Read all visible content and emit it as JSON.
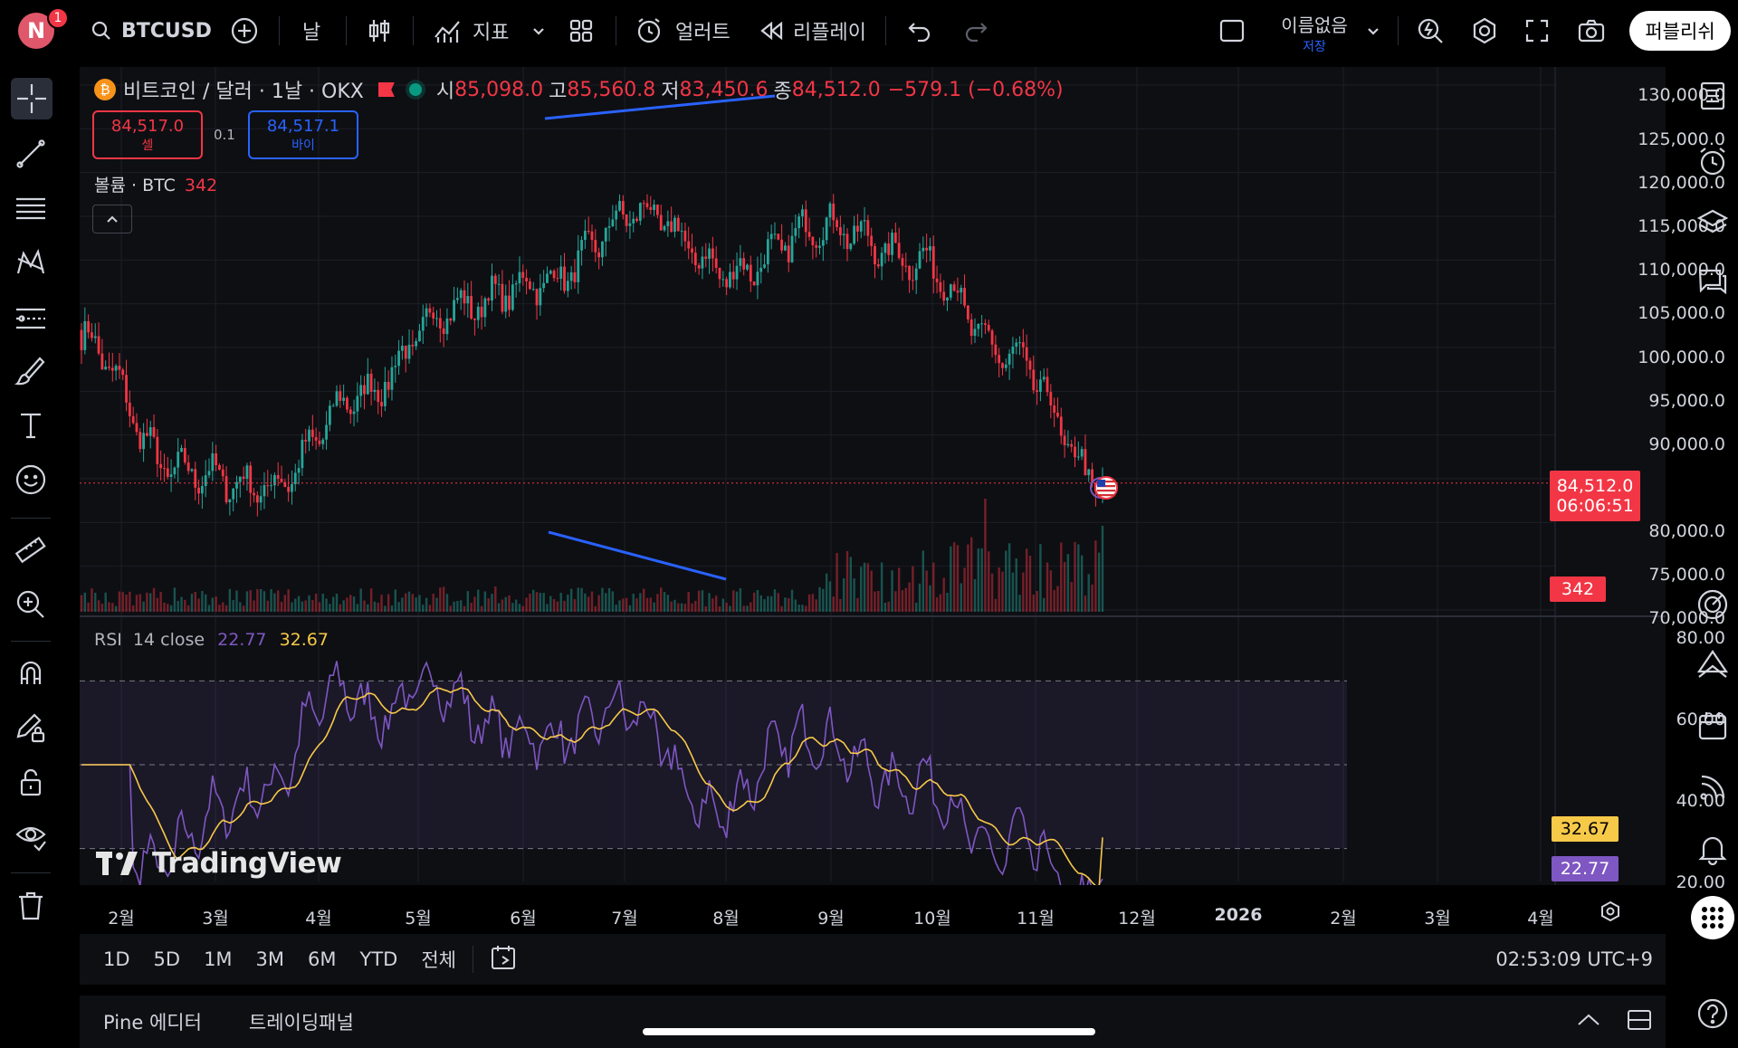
{
  "topbar": {
    "avatar_letter": "N",
    "notification_count": "1",
    "symbol": "BTCUSD",
    "interval": "날",
    "indicators_label": "지표",
    "alert_label": "얼러트",
    "replay_label": "리플레이",
    "layout_name": "이름없음",
    "layout_status": "저장",
    "publish_label": "퍼블리쉬"
  },
  "legend": {
    "title": "비트코인 / 달러 · 1날 · OKX",
    "open_label": "시",
    "open": "85,098.0",
    "high_label": "고",
    "high": "85,560.8",
    "low_label": "저",
    "low": "83,450.6",
    "close_label": "종",
    "close": "84,512.0",
    "change": "−579.1 (−0.68%)",
    "sell_price": "84,517.0",
    "sell_label": "셀",
    "spread": "0.1",
    "buy_price": "84,517.1",
    "buy_label": "바이",
    "volume_label": "볼륨 · BTC",
    "volume_value": "342"
  },
  "price_axis": [
    "130,000.0",
    "125,000.0",
    "120,000.0",
    "115,000.0",
    "110,000.0",
    "105,000.0",
    "100,000.0",
    "95,000.0",
    "90,000.0",
    "80,000.0",
    "75,000.0",
    "70,000.0"
  ],
  "last_price_tag": {
    "price": "84,512.0",
    "countdown": "06:06:51"
  },
  "volume_tag": "342",
  "rsi": {
    "label": "RSI",
    "params": "14 close",
    "value": "22.77",
    "ma_value": "32.67",
    "axis": [
      "80.00",
      "60.00",
      "40.00",
      "20.00"
    ]
  },
  "time_axis": [
    "2월",
    "3월",
    "4월",
    "5월",
    "6월",
    "7월",
    "8월",
    "9월",
    "10월",
    "11월",
    "12월",
    "2026",
    "2월",
    "3월",
    "4월"
  ],
  "watermark": "TradingView",
  "ranges": [
    "1D",
    "5D",
    "1M",
    "3M",
    "6M",
    "YTD",
    "전체"
  ],
  "clock": "02:53:09 UTC+9",
  "panels": [
    "Pine 에디터",
    "트레이딩패널"
  ],
  "colors": {
    "up": "#26a69a",
    "down": "#f23645",
    "rsi": "#7e57c2",
    "rsi_ma": "#f7c948",
    "trendline": "#2962ff"
  },
  "chart_data": {
    "type": "candlestick",
    "title": "비트코인 / 달러 · 1날 · OKX",
    "ylim": [
      70000,
      130000
    ],
    "x": [
      "2월",
      "3월",
      "4월",
      "5월",
      "6월",
      "7월",
      "8월",
      "9월",
      "10월",
      "11월"
    ],
    "close_path": [
      101000,
      86000,
      84000,
      94500,
      104500,
      107500,
      115500,
      108500,
      114000,
      110000,
      99000,
      84512
    ],
    "rsi_ylim": [
      20,
      80
    ],
    "rsi_last": 22.77,
    "rsi_ma_last": 32.67
  }
}
